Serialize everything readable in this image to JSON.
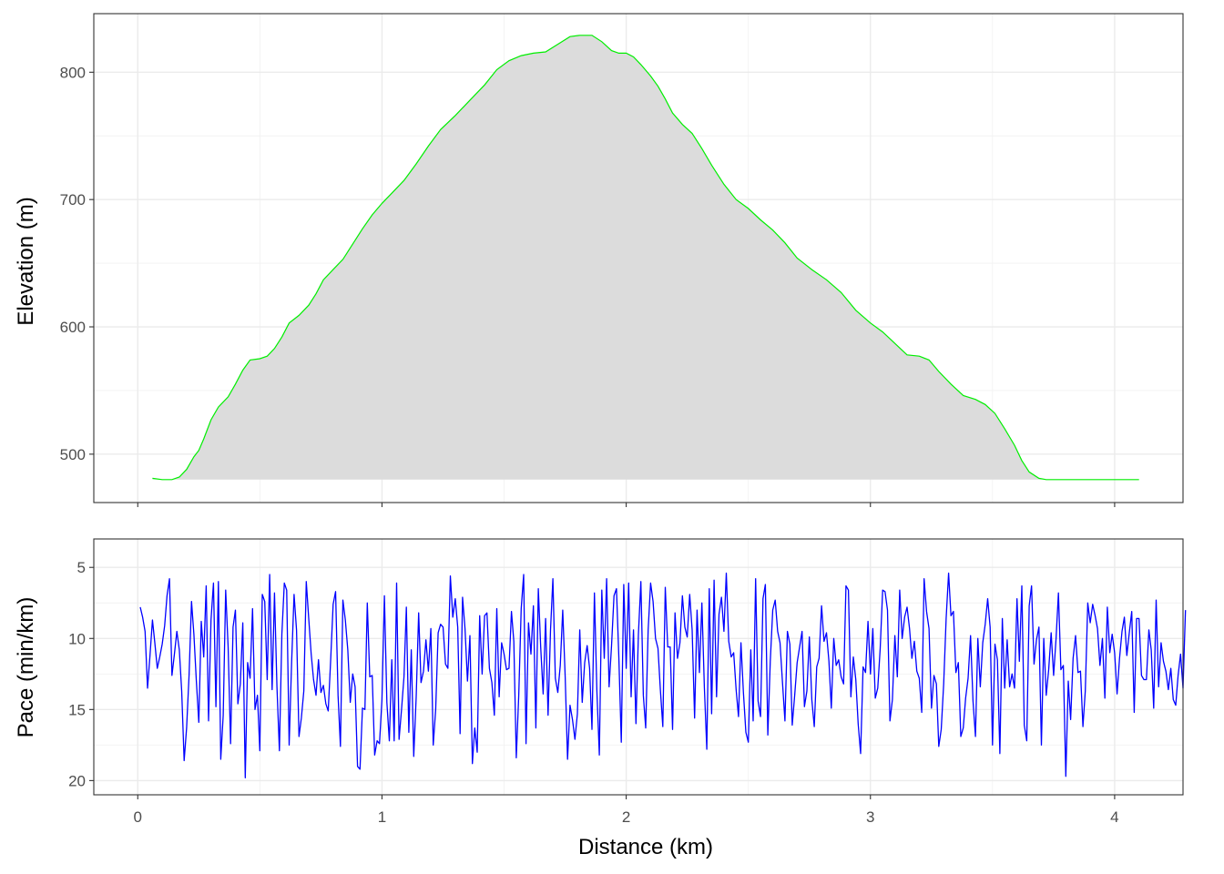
{
  "chart_data": [
    {
      "type": "area",
      "ylabel": "Elevation (m)",
      "xlabel": "",
      "xlim": [
        -0.18,
        4.28
      ],
      "ylim": [
        462,
        846
      ],
      "x_ticks": [
        0,
        1,
        2,
        3,
        4
      ],
      "y_ticks": [
        500,
        600,
        700,
        800
      ],
      "y_tick_labels": [
        "500",
        "600",
        "700",
        "800"
      ],
      "show_x_tick_labels": false,
      "grid": true,
      "line_color": "#00ee00",
      "fill_color": "#dcdcdc",
      "baseline": 480,
      "x": [
        0.06,
        0.1,
        0.14,
        0.17,
        0.2,
        0.23,
        0.25,
        0.27,
        0.3,
        0.33,
        0.37,
        0.4,
        0.43,
        0.46,
        0.5,
        0.53,
        0.56,
        0.59,
        0.62,
        0.66,
        0.7,
        0.73,
        0.76,
        0.8,
        0.84,
        0.88,
        0.92,
        0.96,
        1.0,
        1.04,
        1.09,
        1.14,
        1.19,
        1.24,
        1.3,
        1.36,
        1.42,
        1.47,
        1.52,
        1.57,
        1.62,
        1.67,
        1.72,
        1.77,
        1.81,
        1.86,
        1.9,
        1.94,
        1.97,
        2.0,
        2.03,
        2.06,
        2.1,
        2.13,
        2.16,
        2.19,
        2.23,
        2.27,
        2.31,
        2.35,
        2.4,
        2.45,
        2.5,
        2.55,
        2.6,
        2.65,
        2.7,
        2.76,
        2.82,
        2.88,
        2.94,
        3.0,
        3.05,
        3.1,
        3.15,
        3.2,
        3.24,
        3.28,
        3.33,
        3.38,
        3.43,
        3.47,
        3.51,
        3.55,
        3.59,
        3.62,
        3.65,
        3.69,
        3.72,
        3.76,
        3.79,
        3.82,
        3.85,
        3.88,
        3.92,
        3.96,
        4.0,
        4.05,
        4.1
      ],
      "y": [
        481,
        480,
        480,
        482,
        488,
        498,
        503,
        512,
        527,
        537,
        545,
        555,
        566,
        574,
        575,
        577,
        583,
        592,
        603,
        609,
        617,
        626,
        637,
        645,
        653,
        665,
        677,
        688,
        697,
        705,
        715,
        728,
        742,
        755,
        766,
        778,
        790,
        802,
        809,
        813,
        815,
        816,
        822,
        828,
        829,
        829,
        824,
        817,
        815,
        815,
        812,
        806,
        797,
        789,
        779,
        768,
        759,
        752,
        740,
        727,
        712,
        700,
        693,
        684,
        676,
        666,
        654,
        645,
        637,
        627,
        613,
        603,
        596,
        587,
        578,
        577,
        574,
        565,
        555,
        546,
        543,
        539,
        532,
        520,
        507,
        495,
        486,
        481,
        480,
        480,
        480,
        480,
        480,
        480,
        480,
        480,
        480,
        480,
        480
      ],
      "edge_rise": 6
    },
    {
      "type": "line",
      "ylabel": "Pace (min/km)",
      "xlabel": "Distance (km)",
      "xlim": [
        -0.18,
        4.28
      ],
      "ylim": [
        21,
        3
      ],
      "y_reversed": true,
      "x_ticks": [
        0,
        1,
        2,
        3,
        4
      ],
      "x_tick_labels": [
        "0",
        "1",
        "2",
        "3",
        "4"
      ],
      "y_ticks": [
        5,
        10,
        15,
        20
      ],
      "y_tick_labels": [
        "5",
        "10",
        "15",
        "20"
      ],
      "grid": true,
      "line_color": "#0000ff",
      "x_start": 0.01,
      "x_step": 0.01,
      "y": [
        7.8,
        8.5,
        9.5,
        13.5,
        11.2,
        8.7,
        10.3,
        12.1,
        11.3,
        10.4,
        9.1,
        7.0,
        5.8,
        12.6,
        11.1,
        9.5,
        10.8,
        13.7,
        18.6,
        16.3,
        12.6,
        7.4,
        9.7,
        13.0,
        15.9,
        8.8,
        11.3,
        6.3,
        15.8,
        8.7,
        6.1,
        14.8,
        6.0,
        18.5,
        15.4,
        6.6,
        10.6,
        17.4,
        9.2,
        8.0,
        14.6,
        13.2,
        8.9,
        19.8,
        11.7,
        12.8,
        7.9,
        15.0,
        14.0,
        17.9,
        6.9,
        7.4,
        12.9,
        5.5,
        13.6,
        6.8,
        13.4,
        17.9,
        9.7,
        6.1,
        6.6,
        17.5,
        11.7,
        6.9,
        9.4,
        16.9,
        15.6,
        13.7,
        6.0,
        8.6,
        11.1,
        12.9,
        14.0,
        11.5,
        13.8,
        13.3,
        14.6,
        15.1,
        11.5,
        7.6,
        6.7,
        14.0,
        17.6,
        7.3,
        8.7,
        10.8,
        14.5,
        12.5,
        13.4,
        19.0,
        19.2,
        14.9,
        15.0,
        7.5,
        12.7,
        12.6,
        18.2,
        17.2,
        17.4,
        14.3,
        7.0,
        14.5,
        17.2,
        11.5,
        17.2,
        6.1,
        17.1,
        15.0,
        12.7,
        7.8,
        16.6,
        10.8,
        18.3,
        14.1,
        8.2,
        13.1,
        12.3,
        10.1,
        12.3,
        9.3,
        17.5,
        15.0,
        9.6,
        9.0,
        9.2,
        11.8,
        12.1,
        5.6,
        8.5,
        7.2,
        9.2,
        16.7,
        7.1,
        9.3,
        13.0,
        9.8,
        18.8,
        16.3,
        18.0,
        8.4,
        12.5,
        8.4,
        8.2,
        12.1,
        13.1,
        15.4,
        7.9,
        14.1,
        10.3,
        11.1,
        12.2,
        12.1,
        8.1,
        10.2,
        18.4,
        14.0,
        7.9,
        5.5,
        17.4,
        8.9,
        11.1,
        7.7,
        16.3,
        6.5,
        10.6,
        13.9,
        8.6,
        15.4,
        9.4,
        5.8,
        12.8,
        13.8,
        11.9,
        8.0,
        12.7,
        18.5,
        14.7,
        15.7,
        17.1,
        15.3,
        9.4,
        14.5,
        11.7,
        10.5,
        12.1,
        16.4,
        6.8,
        13.7,
        18.2,
        6.6,
        11.4,
        5.8,
        13.4,
        10.5,
        7.0,
        6.5,
        11.3,
        17.3,
        6.2,
        12.1,
        6.1,
        14.1,
        9.4,
        16.0,
        9.7,
        6.0,
        14.0,
        16.3,
        9.4,
        6.1,
        7.4,
        10.0,
        10.7,
        13.6,
        16.2,
        6.4,
        10.6,
        10.6,
        16.4,
        8.2,
        11.4,
        10.3,
        7.0,
        9.2,
        9.9,
        6.9,
        9.4,
        15.6,
        8.0,
        12.4,
        7.5,
        13.4,
        17.8,
        6.5,
        15.3,
        5.9,
        14.1,
        8.3,
        7.1,
        9.5,
        5.4,
        10.2,
        11.3,
        11.0,
        13.6,
        15.5,
        10.3,
        13.8,
        16.6,
        17.3,
        10.8,
        15.8,
        5.8,
        14.4,
        15.5,
        7.2,
        6.2,
        16.8,
        11.6,
        8.0,
        7.3,
        9.5,
        10.3,
        13.1,
        15.8,
        9.5,
        10.4,
        16.1,
        14.0,
        11.7,
        10.6,
        9.5,
        14.8,
        13.7,
        9.9,
        14.3,
        16.2,
        12.0,
        11.4,
        7.7,
        10.2,
        9.6,
        11.6,
        14.9,
        10.0,
        11.9,
        11.5,
        12.7,
        13.2,
        6.3,
        6.6,
        14.1,
        11.3,
        12.9,
        16.0,
        18.1,
        12.0,
        12.4,
        8.8,
        12.5,
        9.3,
        14.2,
        13.5,
        10.7,
        6.6,
        6.7,
        8.0,
        15.8,
        14.3,
        9.8,
        12.7,
        6.6,
        10.0,
        8.5,
        7.8,
        9.3,
        11.4,
        10.2,
        12.3,
        12.8,
        15.2,
        5.8,
        8.1,
        9.3,
        14.9,
        12.6,
        13.2,
        17.6,
        16.4,
        13.2,
        8.6,
        5.4,
        8.4,
        8.1,
        12.4,
        11.7,
        16.9,
        16.3,
        14.2,
        12.8,
        9.8,
        14.4,
        16.9,
        10.0,
        13.4,
        10.3,
        9.0,
        7.2,
        9.2,
        17.5,
        10.4,
        11.5,
        18.1,
        8.6,
        13.5,
        10.1,
        13.4,
        12.5,
        13.5,
        7.2,
        11.6,
        6.3,
        16.1,
        17.2,
        7.7,
        6.3,
        11.8,
        10.1,
        9.2,
        17.5,
        10.0,
        14.0,
        12.2,
        9.6,
        12.6,
        10.0,
        6.8,
        12.2,
        11.9,
        19.7,
        13.0,
        15.7,
        11.4,
        9.8,
        12.4,
        12.3,
        16.2,
        13.7,
        7.5,
        8.9,
        7.6,
        8.4,
        9.3,
        11.9,
        10.0,
        14.2,
        7.8,
        11.0,
        9.7,
        11.0,
        13.9,
        11.4,
        9.5,
        8.5,
        11.2,
        9.6,
        8.1,
        15.2,
        8.6,
        8.6,
        12.6,
        12.9,
        12.9,
        9.4,
        10.8,
        14.9,
        7.3,
        13.4,
        10.3,
        11.6,
        12.3,
        13.6,
        12.1,
        14.3,
        14.7,
        12.6,
        11.1,
        13.5,
        8.0
      ]
    }
  ]
}
